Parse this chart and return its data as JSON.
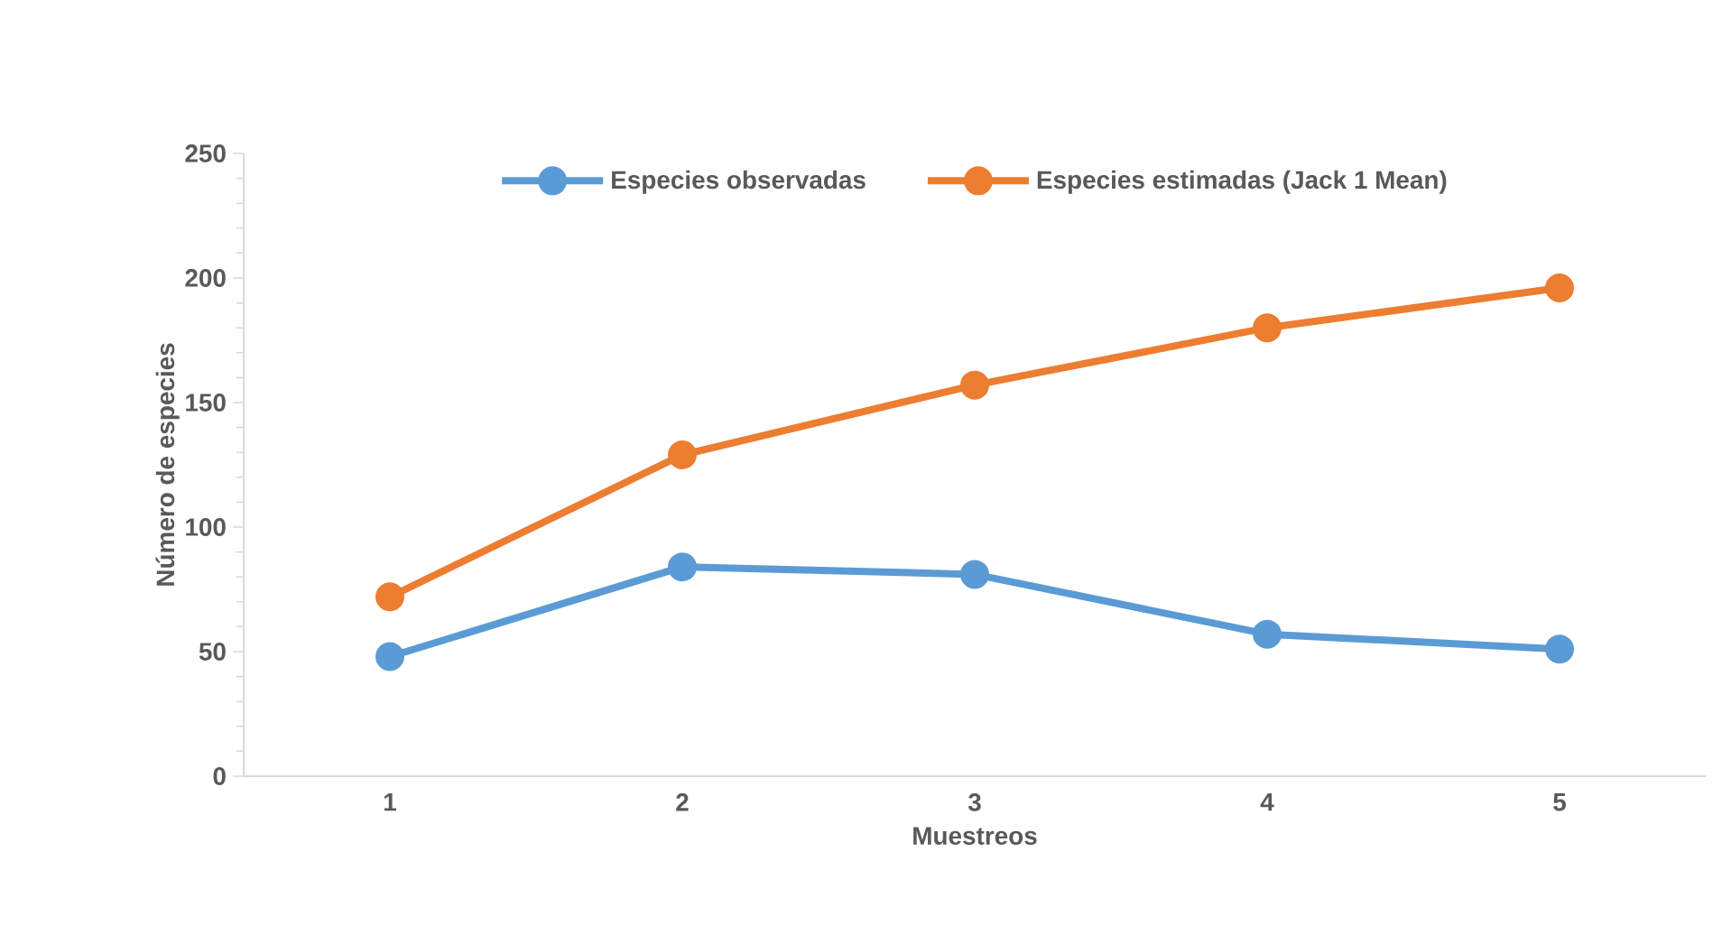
{
  "chart_data": {
    "type": "line",
    "xlabel": "Muestreos",
    "ylabel": "Número de especies",
    "categories": [
      "1",
      "2",
      "3",
      "4",
      "5"
    ],
    "series": [
      {
        "name": "Especies observadas",
        "color": "#5b9bd5",
        "values": [
          48,
          84,
          81,
          57,
          51
        ]
      },
      {
        "name": "Especies estimadas (Jack 1 Mean)",
        "color": "#ed7d31",
        "values": [
          72,
          129,
          157,
          180,
          196
        ]
      }
    ],
    "ylim": [
      0,
      250
    ],
    "yticks": [
      0,
      50,
      100,
      150,
      200,
      250
    ],
    "legend": "top",
    "marker": "circle",
    "line_style": "solid",
    "grid": false
  }
}
